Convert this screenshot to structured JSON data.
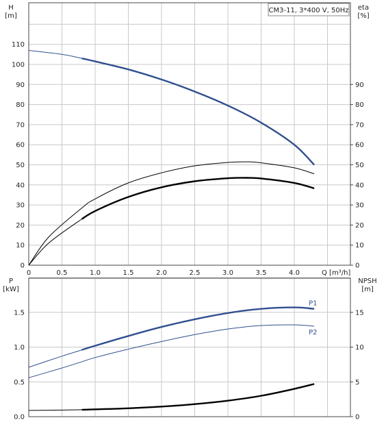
{
  "chart_data": [
    {
      "type": "line",
      "title": "CM3-11, 3*400 V, 50Hz",
      "y_label": "H",
      "y_unit": "[m]",
      "y2_label": "eta",
      "y2_unit": "[%]",
      "x_label": "Q [m³/h]",
      "xlim": [
        0,
        4.5
      ],
      "ylim": [
        0,
        120
      ],
      "y2lim": [
        0,
        120
      ],
      "x_ticks": [
        "0",
        "0.5",
        "1.0",
        "1.5",
        "2.0",
        "2.5",
        "3.0",
        "3.5",
        "4.0"
      ],
      "y_ticks": [
        "0",
        "10",
        "20",
        "30",
        "40",
        "50",
        "60",
        "70",
        "80",
        "90",
        "100",
        "110"
      ],
      "y2_ticks": [
        "0",
        "10",
        "20",
        "30",
        "40",
        "50",
        "60",
        "70",
        "80",
        "90"
      ],
      "grid": true,
      "series": [
        {
          "name": "",
          "axis": "left",
          "color": "#2f4f8f",
          "x": [
            0,
            0.5,
            0.8,
            1.0,
            1.5,
            2.0,
            2.5,
            3.0,
            3.5,
            4.0,
            4.3
          ],
          "y": [
            107,
            105,
            103,
            101.5,
            97.5,
            92.5,
            86.5,
            79.5,
            71,
            60,
            50
          ],
          "emphasis_from_x": 0.8
        },
        {
          "name": "",
          "axis": "right",
          "color": "#000000",
          "x": [
            0,
            0.3,
            0.8,
            1.0,
            1.5,
            2.0,
            2.5,
            3.0,
            3.3,
            3.5,
            4.0,
            4.3
          ],
          "y": [
            0,
            14,
            28.5,
            33,
            41,
            46,
            49.5,
            51.2,
            51.5,
            51,
            48.5,
            45.5
          ],
          "emphasis_from_x": 99
        },
        {
          "name": "",
          "axis": "right",
          "color": "#000000",
          "x": [
            0,
            0.3,
            0.8,
            1.0,
            1.5,
            2.0,
            2.5,
            3.0,
            3.3,
            3.5,
            4.0,
            4.3
          ],
          "y": [
            0,
            11,
            23,
            27,
            34,
            38.8,
            41.8,
            43.3,
            43.5,
            43.2,
            41,
            38.3
          ],
          "emphasis_from_x": 0.8
        }
      ]
    },
    {
      "type": "line",
      "y_label": "P",
      "y_unit": "[kW]",
      "y2_label": "NPSH",
      "y2_unit": "[m]",
      "xlim": [
        0,
        4.5
      ],
      "ylim": [
        0,
        2.0
      ],
      "y2lim": [
        0,
        20
      ],
      "y_ticks": [
        "0.0",
        "0.5",
        "1.0",
        "1.5"
      ],
      "y2_ticks": [
        "0",
        "5",
        "10",
        "15"
      ],
      "grid": true,
      "series": [
        {
          "name": "P1",
          "axis": "left",
          "color": "#2f4f8f",
          "x": [
            0,
            0.5,
            0.8,
            1.0,
            1.5,
            2.0,
            2.5,
            3.0,
            3.5,
            4.0,
            4.3
          ],
          "y": [
            0.71,
            0.87,
            0.96,
            1.02,
            1.16,
            1.29,
            1.4,
            1.49,
            1.55,
            1.57,
            1.55
          ],
          "emphasis_from_x": 0.8
        },
        {
          "name": "P2",
          "axis": "left",
          "color": "#2f4f8f",
          "x": [
            0,
            0.5,
            0.8,
            1.0,
            1.5,
            2.0,
            2.5,
            3.0,
            3.5,
            4.0,
            4.3
          ],
          "y": [
            0.56,
            0.7,
            0.79,
            0.85,
            0.97,
            1.08,
            1.18,
            1.26,
            1.31,
            1.32,
            1.3
          ],
          "emphasis_from_x": 99
        },
        {
          "name": "",
          "axis": "right",
          "color": "#000000",
          "x": [
            0,
            0.5,
            0.8,
            1.0,
            1.5,
            2.0,
            2.5,
            3.0,
            3.5,
            4.0,
            4.3
          ],
          "y": [
            0.9,
            0.95,
            1,
            1.05,
            1.2,
            1.45,
            1.8,
            2.3,
            3.0,
            4.0,
            4.7
          ],
          "emphasis_from_x": 0.8
        }
      ]
    }
  ]
}
